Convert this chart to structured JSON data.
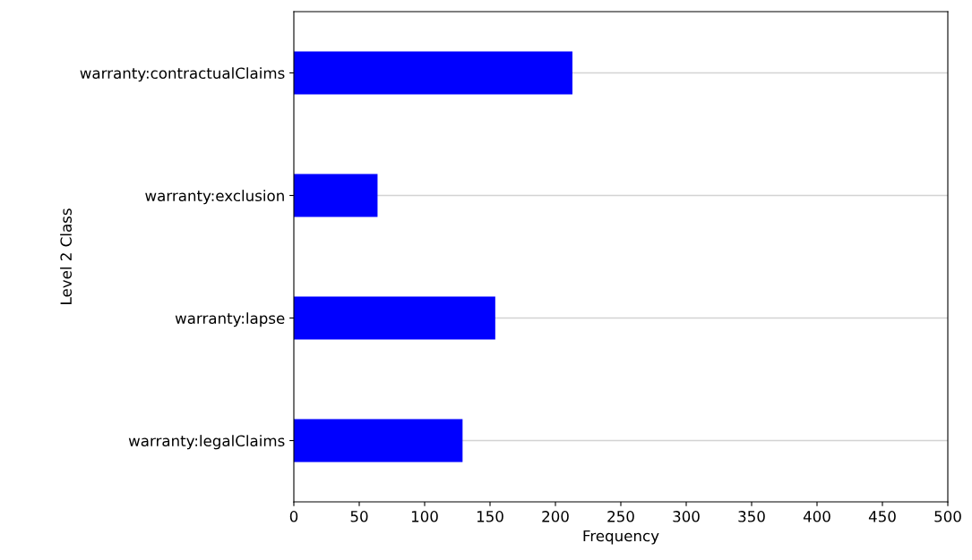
{
  "chart_data": {
    "type": "bar",
    "orientation": "horizontal",
    "xlabel": "Frequency",
    "ylabel": "Level 2 Class",
    "categories": [
      "warranty:contractualClaims",
      "warranty:exclusion",
      "warranty:lapse",
      "warranty:legalClaims"
    ],
    "values": [
      213,
      64,
      154,
      129
    ],
    "color": "#0000ff",
    "xlim": [
      0,
      500
    ],
    "xticks": [
      0,
      50,
      100,
      150,
      200,
      250,
      300,
      350,
      400,
      450,
      500
    ],
    "grid": "y"
  }
}
